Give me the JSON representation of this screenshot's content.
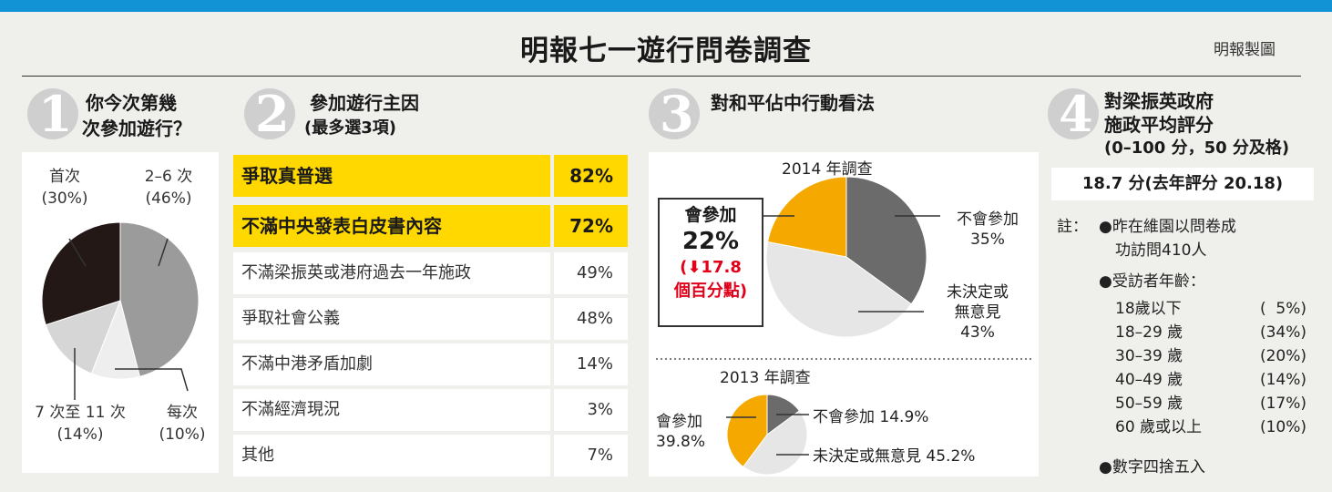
{
  "header": {
    "title": "明報七一遊行問卷調查",
    "credit": "明報製圖"
  },
  "q1": {
    "num": "1",
    "line1": "你今次第幾",
    "line2": "次參加遊行？",
    "labels": [
      {
        "name": "首次",
        "pct": "(30%)"
      },
      {
        "name": "2–6 次",
        "pct": "(46%)"
      },
      {
        "name": "7 次至 11 次",
        "pct": "(14%)"
      },
      {
        "name": "每次",
        "pct": "(10%)"
      }
    ]
  },
  "q2": {
    "num": "2",
    "line1": "參加遊行主因",
    "line2": "(最多選3項)",
    "rows": [
      {
        "label": "爭取真普選",
        "value": "82%"
      },
      {
        "label": "不滿中央發表白皮書內容",
        "value": "72%"
      },
      {
        "label": "不滿梁振英或港府過去一年施政",
        "value": "49%"
      },
      {
        "label": "爭取社會公義",
        "value": "48%"
      },
      {
        "label": "不滿中港矛盾加劇",
        "value": "14%"
      },
      {
        "label": "不滿經濟現況",
        "value": "3%"
      },
      {
        "label": "其他",
        "value": "7%"
      }
    ]
  },
  "q3": {
    "num": "3",
    "line1": "對和平佔中行動看法",
    "survey2014": "2014 年調查",
    "survey2013": "2013 年調查",
    "join_label": "會參加",
    "join_pct": "22%",
    "change": "(⬇17.8",
    "change2": "個百分點)",
    "no_join": "不會參加",
    "no_join_pct": "35%",
    "undecided1": "未決定或",
    "undecided2": "無意見",
    "undecided_pct": "43%",
    "join2013a": "會參加",
    "join2013b": "39.8%",
    "nojoin2013": "不會參加 14.9%",
    "undecided2013": "未決定或無意見 45.2%"
  },
  "q4": {
    "num": "4",
    "line1": "對梁振英政府",
    "line2": "施政平均評分",
    "line3": "(0–100 分，50 分及格)",
    "score": "18.7 分(去年評分 20.18)",
    "note_prefix": "註：",
    "note1a": "●昨在維園以問卷成",
    "note1b": "功訪問410人",
    "note2": "●受訪者年齡：",
    "ages": [
      {
        "range": "18歲以下",
        "pct": "(  5%)"
      },
      {
        "range": "18–29 歲",
        "pct": "(34%)"
      },
      {
        "range": "30–39 歲",
        "pct": "(20%)"
      },
      {
        "range": "40–49 歲",
        "pct": "(14%)"
      },
      {
        "range": "50–59 歲",
        "pct": "(17%)"
      },
      {
        "range": "60 歲或以上",
        "pct": "(10%)"
      }
    ],
    "note3": "●數字四捨五入"
  },
  "chart_data": [
    {
      "type": "pie",
      "title": "你今次第幾次參加遊行？",
      "categories": [
        "首次",
        "2–6 次",
        "7 次至 11 次",
        "每次"
      ],
      "values": [
        30,
        46,
        14,
        10
      ],
      "colors": [
        "#231816",
        "#9b9b9b",
        "#d6d6d6",
        "#eeeeee"
      ]
    },
    {
      "type": "table",
      "title": "參加遊行主因",
      "categories": [
        "爭取真普選",
        "不滿中央發表白皮書內容",
        "不滿梁振英或港府過去一年施政",
        "爭取社會公義",
        "不滿中港矛盾加劇",
        "不滿經濟現況",
        "其他"
      ],
      "values": [
        82,
        72,
        49,
        48,
        14,
        3,
        7
      ]
    },
    {
      "type": "pie",
      "title": "2014 年調查",
      "categories": [
        "會參加",
        "不會參加",
        "未決定或無意見"
      ],
      "values": [
        22,
        35,
        43
      ],
      "colors": [
        "#f5a800",
        "#6b6b6b",
        "#e6e6e6"
      ]
    },
    {
      "type": "pie",
      "title": "2013 年調查",
      "categories": [
        "會參加",
        "不會參加",
        "未決定或無意見"
      ],
      "values": [
        39.8,
        14.9,
        45.2
      ],
      "colors": [
        "#f5a800",
        "#6b6b6b",
        "#e6e6e6"
      ]
    }
  ]
}
